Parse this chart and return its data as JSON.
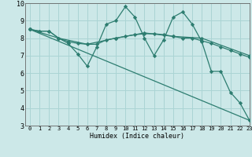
{
  "xlabel": "Humidex (Indice chaleur)",
  "ylabel": "",
  "xlim": [
    -0.5,
    23
  ],
  "ylim": [
    3,
    10
  ],
  "xticks": [
    0,
    1,
    2,
    3,
    4,
    5,
    6,
    7,
    8,
    9,
    10,
    11,
    12,
    13,
    14,
    15,
    16,
    17,
    18,
    19,
    20,
    21,
    22,
    23
  ],
  "yticks": [
    3,
    4,
    5,
    6,
    7,
    8,
    9,
    10
  ],
  "background_color": "#cce8e8",
  "grid_color": "#aad4d4",
  "line_color": "#2d7d70",
  "line1_x": [
    0,
    1,
    2,
    3,
    4,
    5,
    6,
    7,
    8,
    9,
    10,
    11,
    12,
    13,
    14,
    15,
    16,
    17,
    18,
    19,
    20,
    21,
    22,
    23
  ],
  "line1_y": [
    8.5,
    8.4,
    8.4,
    8.0,
    7.8,
    7.7,
    7.65,
    7.65,
    7.9,
    8.0,
    8.1,
    8.2,
    8.25,
    8.25,
    8.2,
    8.1,
    8.0,
    8.0,
    7.85,
    7.7,
    7.5,
    7.3,
    7.1,
    6.9
  ],
  "line2_x": [
    0,
    1,
    2,
    3,
    4,
    5,
    6,
    7,
    8,
    9,
    10,
    11,
    12,
    13,
    14,
    15,
    16,
    17,
    18,
    19,
    20,
    21,
    22,
    23
  ],
  "line2_y": [
    8.5,
    8.4,
    8.4,
    8.0,
    7.7,
    7.1,
    6.4,
    7.5,
    8.8,
    9.0,
    9.8,
    9.2,
    8.0,
    7.0,
    7.9,
    9.2,
    9.5,
    8.8,
    7.8,
    6.1,
    6.1,
    4.9,
    4.3,
    3.3
  ],
  "line3_x": [
    0,
    23
  ],
  "line3_y": [
    8.5,
    3.3
  ],
  "line4_x": [
    0,
    3,
    6,
    9,
    12,
    15,
    18,
    23
  ],
  "line4_y": [
    8.5,
    8.0,
    7.65,
    8.0,
    8.3,
    8.1,
    8.0,
    7.0
  ]
}
